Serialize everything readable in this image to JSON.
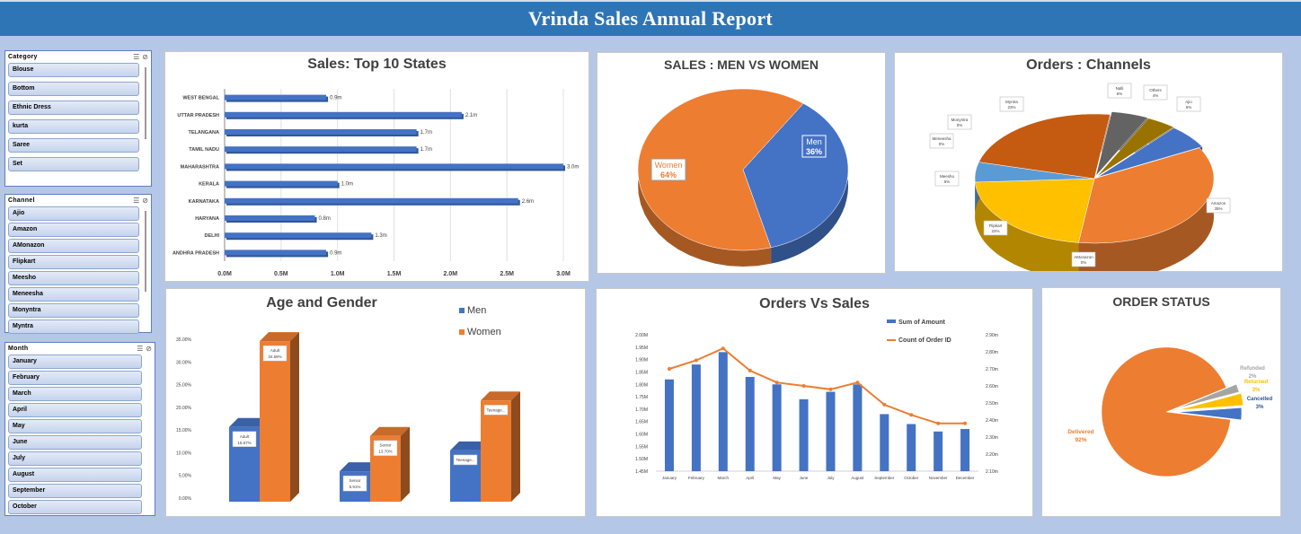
{
  "header": {
    "title": "Vrinda Sales Annual Report"
  },
  "slicers": {
    "category": {
      "title": "Category",
      "items": [
        "Blouse",
        "Bottom",
        "Ethnic Dress",
        "kurta",
        "Saree",
        "Set"
      ]
    },
    "channel": {
      "title": "Channel",
      "items": [
        "Ajio",
        "Amazon",
        "AMonazon",
        "Flipkart",
        "Meesho",
        "Meneesha",
        "Monyntra",
        "Myntra"
      ]
    },
    "month": {
      "title": "Month",
      "items": [
        "January",
        "February",
        "March",
        "April",
        "May",
        "June",
        "July",
        "August",
        "September",
        "October"
      ]
    }
  },
  "charts": {
    "states": {
      "title": "Sales: Top 10 States"
    },
    "men_women": {
      "title": "SALES : MEN VS WOMEN"
    },
    "channels": {
      "title": "Orders : Channels"
    },
    "age_gender": {
      "title": "Age and Gender"
    },
    "orders_sales": {
      "title": "Orders Vs Sales"
    },
    "order_status": {
      "title": "ORDER STATUS"
    }
  },
  "colors": {
    "blue": "#4472c4",
    "orange": "#ed7d31",
    "gray": "#a5a5a5",
    "yellow": "#ffc000",
    "header": "#2e75b6",
    "background": "#b4c7e7"
  },
  "chart_data": [
    {
      "id": "states",
      "type": "bar",
      "orientation": "horizontal",
      "title": "Sales: Top 10 States",
      "categories": [
        "WEST BENGAL",
        "UTTAR PRADESH",
        "TELANGANA",
        "TAMIL NADU",
        "MAHARASHTRA",
        "KERALA",
        "KARNATAKA",
        "HARYANA",
        "DELHI",
        "ANDHRA PRADESH"
      ],
      "values": [
        0.9,
        2.1,
        1.7,
        1.7,
        3.0,
        1.0,
        2.6,
        0.8,
        1.3,
        0.9
      ],
      "labels": [
        "0.9m",
        "2.1m",
        "1.7m",
        "1.7m",
        "3.0m",
        "1.0m",
        "2.6m",
        "0.8m",
        "1.3m",
        "0.9m"
      ],
      "xticks": [
        "0.0M",
        "0.5M",
        "1.0M",
        "1.5M",
        "2.0M",
        "2.5M",
        "3.0M"
      ],
      "xlim": [
        0,
        3.0
      ],
      "grid": true
    },
    {
      "id": "men_women",
      "type": "pie",
      "title": "SALES : MEN VS WOMEN",
      "slices": [
        {
          "name": "Men",
          "value": 36,
          "label": "36%",
          "color": "#4472c4"
        },
        {
          "name": "Women",
          "value": 64,
          "label": "64%",
          "color": "#ed7d31"
        }
      ]
    },
    {
      "id": "channels",
      "type": "pie",
      "title": "Orders : Channels",
      "slices": [
        {
          "name": "Ajio",
          "value": 6,
          "label": "6%",
          "color": "#4472c4"
        },
        {
          "name": "Amazon",
          "value": 35,
          "label": "35%",
          "color": "#ed7d31"
        },
        {
          "name": "AMonazon",
          "value": 0,
          "label": "0%",
          "color": "#a5a5a5"
        },
        {
          "name": "Flipkart",
          "value": 22,
          "label": "22%",
          "color": "#ffc000"
        },
        {
          "name": "Meesho",
          "value": 5,
          "label": "5%",
          "color": "#5b9bd5"
        },
        {
          "name": "Meneesha",
          "value": 0,
          "label": "0%",
          "color": "#264478"
        },
        {
          "name": "Monyntra",
          "value": 0,
          "label": "0%",
          "color": "#9e480e"
        },
        {
          "name": "Myntra",
          "value": 23,
          "label": "23%",
          "color": "#c55a11"
        },
        {
          "name": "Nalli",
          "value": 5,
          "label": "5%",
          "color": "#636363"
        },
        {
          "name": "Others",
          "value": 4,
          "label": "4%",
          "color": "#997300"
        }
      ]
    },
    {
      "id": "age_gender",
      "type": "bar",
      "title": "Age and Gender",
      "categories": [
        "Adult",
        "Senior",
        "Teenager"
      ],
      "series": [
        {
          "name": "Men",
          "values": [
            15.67,
            5.91,
            10.5
          ],
          "labels": [
            "Adult\n15.67%",
            "Senior\n5.91%",
            "Teenage..."
          ],
          "color": "#4472c4"
        },
        {
          "name": "Women",
          "values": [
            34.58,
            13.7,
            21.5
          ],
          "labels": [
            "Adult\n34.58%",
            "Senior\n13.70%",
            "Teenage..."
          ],
          "color": "#ed7d31"
        }
      ],
      "yticks": [
        "0.00%",
        "5.00%",
        "10.00%",
        "15.00%",
        "20.00%",
        "25.00%",
        "30.00%",
        "35.00%"
      ],
      "ylim": [
        0,
        35
      ],
      "legend": "top-right"
    },
    {
      "id": "orders_sales",
      "type": "bar",
      "title": "Orders Vs Sales",
      "categories": [
        "January",
        "February",
        "March",
        "April",
        "May",
        "June",
        "July",
        "August",
        "September",
        "October",
        "November",
        "December"
      ],
      "series": [
        {
          "name": "Sum of Amount",
          "type": "bar",
          "axis": "left",
          "values": [
            1.82,
            1.88,
            1.93,
            1.83,
            1.8,
            1.74,
            1.77,
            1.8,
            1.68,
            1.64,
            1.61,
            1.62
          ],
          "color": "#4472c4"
        },
        {
          "name": "Count of Order ID",
          "type": "line",
          "axis": "right",
          "values": [
            2.7,
            2.75,
            2.82,
            2.69,
            2.62,
            2.6,
            2.58,
            2.62,
            2.49,
            2.43,
            2.38,
            2.38
          ],
          "color": "#ed7d31"
        }
      ],
      "yticks_left": [
        "1.45M",
        "1.50M",
        "1.55M",
        "1.60M",
        "1.65M",
        "1.70M",
        "1.75M",
        "1.80M",
        "1.85M",
        "1.90M",
        "1.95M",
        "2.00M"
      ],
      "ylim_left": [
        1.45,
        2.0
      ],
      "yticks_right": [
        "2.10m",
        "2.20m",
        "2.30m",
        "2.40m",
        "2.50m",
        "2.60m",
        "2.70m",
        "2.80m",
        "2.90m"
      ],
      "ylim_right": [
        2.1,
        2.9
      ],
      "legend": "top"
    },
    {
      "id": "order_status",
      "type": "pie",
      "title": "ORDER STATUS",
      "slices": [
        {
          "name": "Delivered",
          "value": 92,
          "label": "92%",
          "color": "#ed7d31"
        },
        {
          "name": "Refunded",
          "value": 2,
          "label": "2%",
          "color": "#a5a5a5"
        },
        {
          "name": "Returned",
          "value": 3,
          "label": "3%",
          "color": "#ffc000"
        },
        {
          "name": "Cancelled",
          "value": 3,
          "label": "3%",
          "color": "#4472c4"
        }
      ]
    }
  ]
}
